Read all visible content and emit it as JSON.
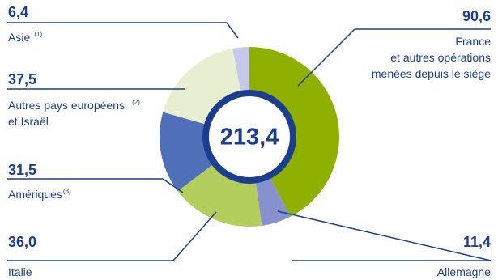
{
  "chart_data": {
    "type": "pie",
    "center_label": "213,4",
    "slices": [
      {
        "id": "france",
        "value": 90.6,
        "value_label": "90,6",
        "label_lines": [
          "France",
          "et autres opérations",
          "menées depuis le siège"
        ],
        "color": "#8fb000"
      },
      {
        "id": "allemagne",
        "value": 11.4,
        "value_label": "11,4",
        "label_lines": [
          "Allemagne"
        ],
        "color": "#8792cc"
      },
      {
        "id": "italie",
        "value": 36.0,
        "value_label": "36,0",
        "label_lines": [
          "Italie"
        ],
        "color": "#b4ce5e"
      },
      {
        "id": "ameriques",
        "value": 31.5,
        "value_label": "31,5",
        "label_lines": [
          "Amériques"
        ],
        "footnotes": [
          "(3)"
        ],
        "color": "#4f6fb8"
      },
      {
        "id": "autres-europe",
        "value": 37.5,
        "value_label": "37,5",
        "label_lines": [
          "Autres pays européens",
          "et Israël"
        ],
        "footnotes": [
          "(2)",
          ""
        ],
        "color": "#e8efd0"
      },
      {
        "id": "asie",
        "value": 6.4,
        "value_label": "6,4",
        "label_lines": [
          "Asie"
        ],
        "footnotes": [
          "(1)"
        ],
        "color": "#c7c9ea"
      }
    ]
  },
  "colors": {
    "value_text": "#1b3f8e",
    "ring": "#1b3f8e",
    "leader": "#1b3f8e",
    "label_text": "#1b3f8e"
  }
}
